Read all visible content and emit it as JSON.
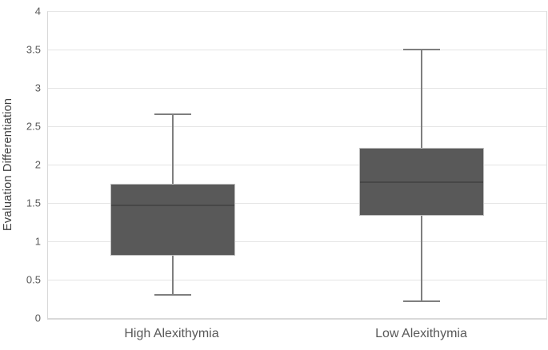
{
  "chart_data": {
    "type": "boxplot",
    "title": "",
    "xlabel": "",
    "ylabel": "Evaluation Differentiation",
    "ylim": [
      0,
      4
    ],
    "yticks": [
      0,
      0.5,
      1,
      1.5,
      2,
      2.5,
      3,
      3.5,
      4
    ],
    "ytick_labels": [
      "0",
      "0.5",
      "1",
      "1.5",
      "2",
      "2.5",
      "3",
      "3.5",
      "4"
    ],
    "grid": "horizontal",
    "legend": "none",
    "categories": [
      "High Alexithymia",
      "Low Alexithymia"
    ],
    "boxes": [
      {
        "category": "High Alexithymia",
        "whisker_min": 0.3,
        "q1": 0.81,
        "median": 1.47,
        "q3": 1.75,
        "whisker_max": 2.66
      },
      {
        "category": "Low Alexithymia",
        "whisker_min": 0.22,
        "q1": 1.33,
        "median": 1.77,
        "q3": 2.22,
        "whisker_max": 3.5
      }
    ],
    "colors": {
      "box_fill": "#595959",
      "box_border": "#bfbfbf",
      "median_line": "#474747",
      "whisker": "#7f7f7f",
      "gridline": "#e5e5e5",
      "axis_line": "#d9d9d9",
      "tick_label": "#595959",
      "axis_title": "#404040",
      "background": "#ffffff"
    }
  }
}
